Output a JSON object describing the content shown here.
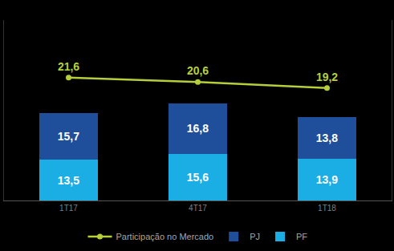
{
  "chart_data": {
    "type": "bar",
    "stacked": true,
    "data_labels": true,
    "tick_labels": "x",
    "grid": false,
    "legend": "bottom",
    "categories": [
      "1T17",
      "4T17",
      "1T18"
    ],
    "series": [
      {
        "name": "PF",
        "color": "#1aaee5",
        "values": [
          13.5,
          15.6,
          13.9
        ],
        "value_labels": [
          "13,5",
          "15,6",
          "13,9"
        ]
      },
      {
        "name": "PJ",
        "color": "#1f4e9a",
        "values": [
          15.7,
          16.8,
          13.8
        ],
        "value_labels": [
          "15,7",
          "16,8",
          "13,8"
        ]
      },
      {
        "name": "Participação no Mercado",
        "type": "line",
        "axis": "y2",
        "color": "#b5cf3a",
        "marker": "circle",
        "values": [
          21.6,
          20.6,
          19.2
        ],
        "value_labels": [
          "21,6",
          "20,6",
          "19,2"
        ]
      }
    ],
    "ylim": [
      0,
      60
    ],
    "yticks": [],
    "y2lim": [
      -7,
      35
    ],
    "y2ticks": []
  }
}
